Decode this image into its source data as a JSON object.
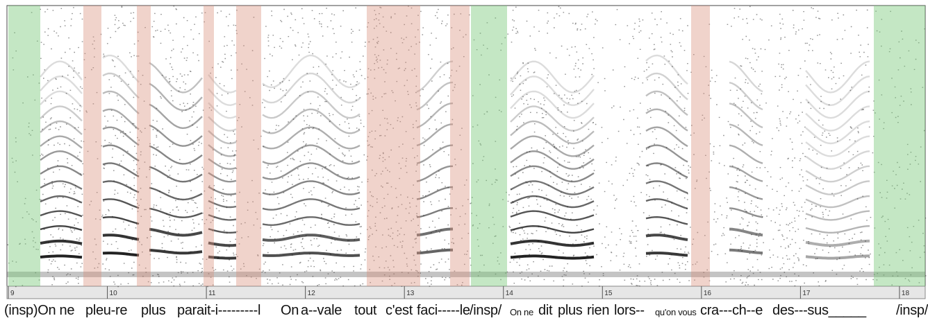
{
  "chart_data": {
    "type": "spectrogram",
    "xlim": [
      8.986,
      18.26
    ],
    "xticks": [
      9,
      10,
      11,
      12,
      13,
      14,
      15,
      16,
      17,
      18
    ],
    "lyrics": [
      "(insp)On ne",
      "pleu-re",
      "plus",
      "parait-i---------l",
      "On",
      "a--vale",
      "tout",
      "c'est",
      "faci-----le",
      "/insp/",
      "On ne",
      "dit",
      "plus",
      "rien",
      "lors--",
      "qu'on vous",
      "cra---ch--e",
      "des---sus_____",
      "/insp/"
    ]
  }
}
